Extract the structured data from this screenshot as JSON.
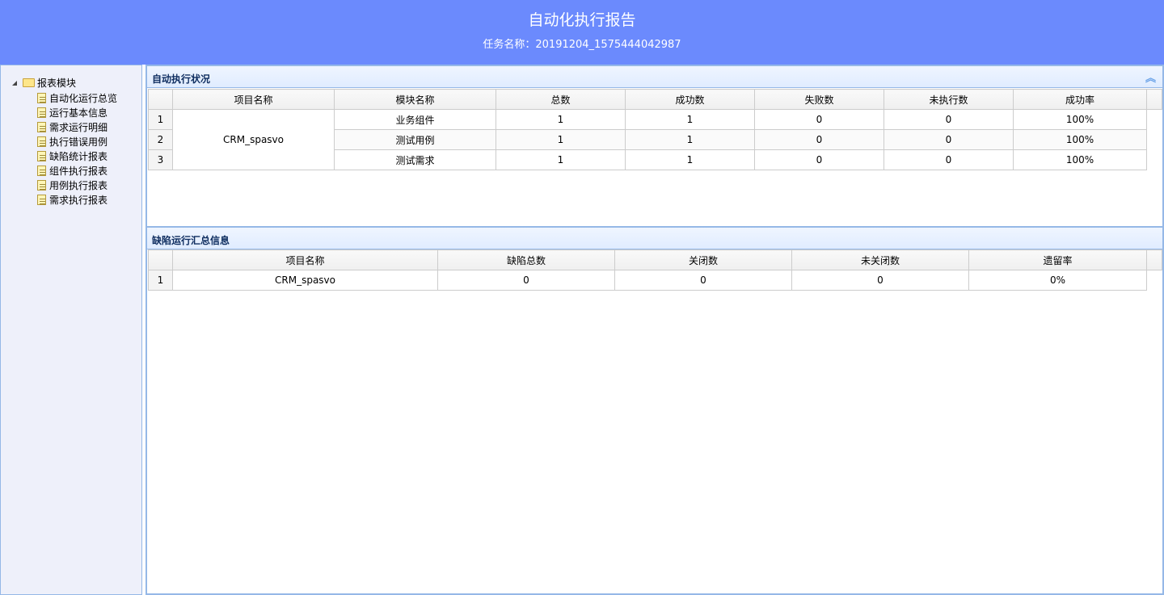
{
  "header": {
    "title": "自动化执行报告",
    "task": "任务名称：20191204_1575444042987"
  },
  "sidebar": {
    "root": "报表模块",
    "items": [
      "自动化运行总览",
      "运行基本信息",
      "需求运行明细",
      "执行错误用例",
      "缺陷统计报表",
      "组件执行报表",
      "用例执行报表",
      "需求执行报表"
    ]
  },
  "exec": {
    "title": "自动执行状况",
    "columns": [
      "项目名称",
      "模块名称",
      "总数",
      "成功数",
      "失败数",
      "未执行数",
      "成功率"
    ],
    "project": "CRM_spasvo",
    "rows": [
      [
        "1",
        "业务组件",
        "1",
        "1",
        "0",
        "0",
        "100%"
      ],
      [
        "2",
        "测试用例",
        "1",
        "1",
        "0",
        "0",
        "100%"
      ],
      [
        "3",
        "测试需求",
        "1",
        "1",
        "0",
        "0",
        "100%"
      ]
    ]
  },
  "defect": {
    "title": "缺陷运行汇总信息",
    "columns": [
      "项目名称",
      "缺陷总数",
      "关闭数",
      "未关闭数",
      "遗留率"
    ],
    "rows": [
      [
        "1",
        "CRM_spasvo",
        "0",
        "0",
        "0",
        "0%"
      ]
    ]
  },
  "colors": {
    "header": "#6b8afd",
    "border": "#95b8e7"
  }
}
